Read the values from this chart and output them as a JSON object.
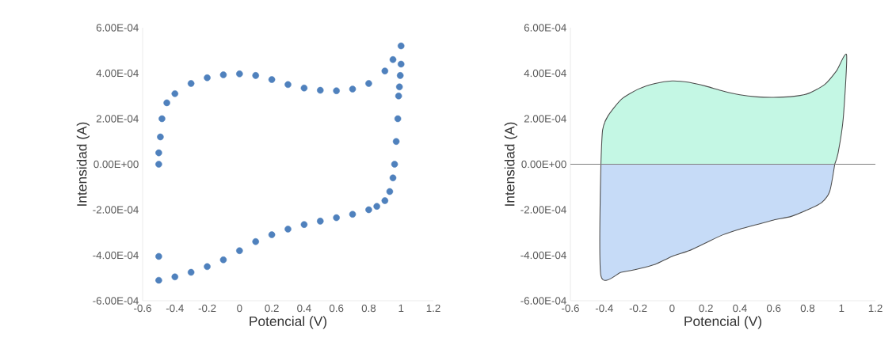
{
  "chart_data": [
    {
      "type": "scatter",
      "xlabel": "Potencial (V)",
      "ylabel": "Intensidad (A)",
      "marker": "circle",
      "grid": false,
      "xlim": [
        -0.6,
        1.2
      ],
      "xticks": [
        -0.6,
        -0.4,
        -0.2,
        0,
        0.2,
        0.4,
        0.6,
        0.8,
        1,
        1.2
      ],
      "ylim": [
        -0.0006,
        0.0006
      ],
      "yticks": [
        {
          "value": -0.0006,
          "label": "-6.00E-04"
        },
        {
          "value": -0.0004,
          "label": "-4.00E-04"
        },
        {
          "value": -0.0002,
          "label": "-2.00E-04"
        },
        {
          "value": 0,
          "label": "0.00E+00"
        },
        {
          "value": 0.0002,
          "label": "2.00E-04"
        },
        {
          "value": 0.0004,
          "label": "4.00E-04"
        },
        {
          "value": 0.0006,
          "label": "6.00E-04"
        }
      ],
      "series": [
        {
          "color": "#4f81bd",
          "x": [
            -0.5,
            -0.5,
            -0.49,
            -0.48,
            -0.45,
            -0.4,
            -0.3,
            -0.2,
            -0.1,
            0,
            0.1,
            0.2,
            0.3,
            0.4,
            0.5,
            0.6,
            0.7,
            0.8,
            0.9,
            0.95,
            1.0,
            1.0,
            0.995,
            0.99,
            0.985,
            0.98,
            0.97,
            0.96,
            0.95,
            0.93,
            0.9,
            0.85,
            0.8,
            0.7,
            0.6,
            0.5,
            0.4,
            0.3,
            0.2,
            0.1,
            0,
            -0.1,
            -0.2,
            -0.3,
            -0.4,
            -0.5,
            -0.5
          ],
          "values": [
            0,
            5e-05,
            0.00012,
            0.0002,
            0.00027,
            0.00031,
            0.000355,
            0.00038,
            0.000393,
            0.000397,
            0.00039,
            0.000372,
            0.00035,
            0.000335,
            0.000325,
            0.000323,
            0.00033,
            0.000355,
            0.00041,
            0.00046,
            0.00052,
            0.00044,
            0.00039,
            0.00034,
            0.0003,
            0.0002,
            0.0001,
            0,
            -6e-05,
            -0.00012,
            -0.00016,
            -0.000185,
            -0.0002,
            -0.00022,
            -0.000235,
            -0.00025,
            -0.000265,
            -0.000285,
            -0.00031,
            -0.00034,
            -0.00038,
            -0.00042,
            -0.00045,
            -0.000475,
            -0.000495,
            -0.00051,
            -0.000405
          ]
        }
      ]
    },
    {
      "type": "area",
      "xlabel": "Potencial (V)",
      "ylabel": "Intensidad (A)",
      "grid": false,
      "xlim": [
        -0.6,
        1.2
      ],
      "xticks": [
        -0.6,
        -0.4,
        -0.2,
        0,
        0.2,
        0.4,
        0.6,
        0.8,
        1,
        1.2
      ],
      "ylim": [
        -0.0006,
        0.0006
      ],
      "yticks": [
        {
          "value": -0.0006,
          "label": "-6.00E-04"
        },
        {
          "value": -0.0004,
          "label": "-4.00E-04"
        },
        {
          "value": -0.0002,
          "label": "-2.00E-04"
        },
        {
          "value": 0,
          "label": "0.00E+00"
        },
        {
          "value": 0.0002,
          "label": "2.00E-04"
        },
        {
          "value": 0.0004,
          "label": "4.00E-04"
        },
        {
          "value": 0.0006,
          "label": "6.00E-04"
        }
      ],
      "ref_lines": [
        {
          "axis": "y",
          "value": 0,
          "color": "#808080"
        }
      ],
      "series": [
        {
          "color": "#c4f7e4",
          "x": [
            -0.42,
            -0.41,
            -0.38,
            -0.3,
            -0.2,
            -0.1,
            0,
            0.1,
            0.2,
            0.3,
            0.4,
            0.5,
            0.6,
            0.7,
            0.8,
            0.9,
            0.97,
            1.03,
            1.01,
            0.98,
            0.96
          ],
          "values": [
            0,
            0.00015,
            0.00021,
            0.000285,
            0.00033,
            0.000355,
            0.000366,
            0.00036,
            0.000343,
            0.000322,
            0.000305,
            0.000296,
            0.000294,
            0.000297,
            0.00031,
            0.00035,
            0.00041,
            0.00048,
            0.0002,
            5e-05,
            0
          ]
        },
        {
          "color": "#c6dbf7",
          "x": [
            0.96,
            0.93,
            0.88,
            0.8,
            0.7,
            0.6,
            0.5,
            0.4,
            0.3,
            0.2,
            0.1,
            0,
            -0.1,
            -0.2,
            -0.3,
            -0.42,
            -0.42
          ],
          "values": [
            0,
            -0.00012,
            -0.00017,
            -0.0002,
            -0.00023,
            -0.000245,
            -0.000265,
            -0.000285,
            -0.00031,
            -0.000345,
            -0.00038,
            -0.000405,
            -0.00044,
            -0.00046,
            -0.000475,
            -0.00049,
            0
          ]
        }
      ]
    }
  ]
}
